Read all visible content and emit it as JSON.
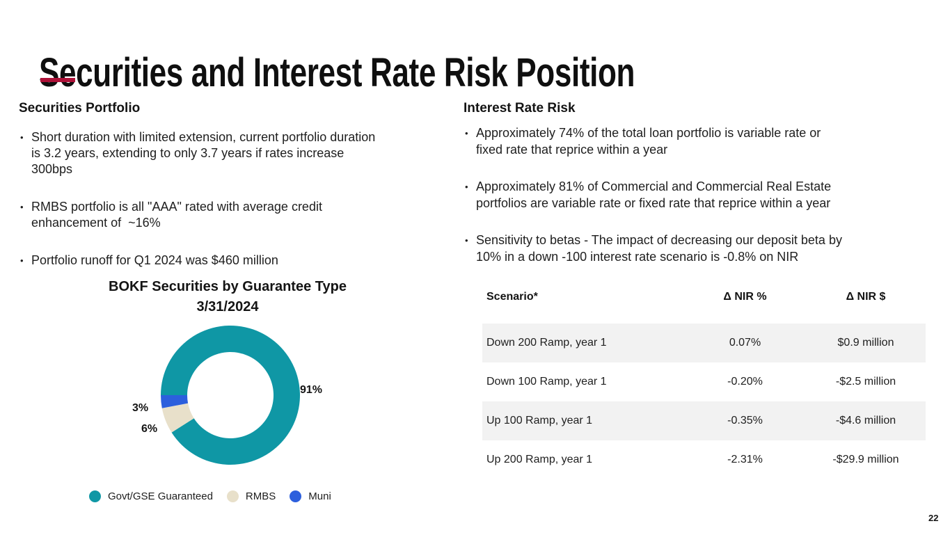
{
  "theme": {
    "accent_color": "#AE1138",
    "background": "#FFFFFF",
    "text_color": "#1E1E1E"
  },
  "title": "Securities and Interest Rate Risk Position",
  "page_number": "22",
  "left_section": {
    "heading": "Securities Portfolio",
    "bullets": [
      [
        "Short duration with limited extension, current portfolio duration",
        "is 3.2 years, extending to only 3.7 years if rates increase",
        "300bps"
      ],
      [
        "RMBS portfolio is all \"AAA\" rated with average credit",
        "enhancement of  ~16%"
      ],
      [
        "Portfolio runoff for Q1 2024 was $460 million"
      ]
    ]
  },
  "right_section": {
    "heading": "Interest Rate Risk",
    "bullets": [
      [
        "Approximately 74% of the total loan portfolio is variable rate or",
        "fixed rate that reprice within a year"
      ],
      [
        "Approximately 81% of Commercial and Commercial Real Estate",
        "portfolios are variable rate or fixed rate that reprice within a year"
      ],
      [
        "Sensitivity to betas - The impact of decreasing our deposit beta by",
        "10% in a down -100 interest rate scenario is -0.8% on NIR"
      ]
    ]
  },
  "chart_data": [
    {
      "type": "pie",
      "donut": true,
      "title": "BOKF Securities by Guarantee Type",
      "subtitle": "3/31/2024",
      "start_angle_deg_clockwise_from_top": 270,
      "legend_position": "bottom",
      "segments": [
        {
          "label": "Govt/GSE Guaranteed",
          "value": 91,
          "display": "91%",
          "color": "#0F97A5"
        },
        {
          "label": "RMBS",
          "value": 6,
          "display": "6%",
          "color": "#E8E0CA"
        },
        {
          "label": "Muni",
          "value": 3,
          "display": "3%",
          "color": "#2C5FDD"
        }
      ]
    },
    {
      "type": "table",
      "columns": [
        "Scenario*",
        "Δ NIR %",
        "Δ NIR $"
      ],
      "rows": [
        [
          "Down 200 Ramp, year 1",
          "0.07%",
          "$0.9 million"
        ],
        [
          "Down 100 Ramp, year 1",
          "-0.20%",
          "-$2.5 million"
        ],
        [
          "Up 100 Ramp, year 1",
          "-0.35%",
          "-$4.6 million"
        ],
        [
          "Up 200 Ramp, year 1",
          "-2.31%",
          "-$29.9 million"
        ]
      ],
      "shaded_rows": [
        0,
        2
      ],
      "zebra_color": "#F2F2F2"
    }
  ]
}
